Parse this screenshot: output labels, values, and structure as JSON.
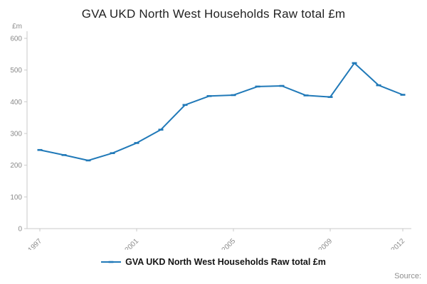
{
  "title": "GVA UKD North West Households Raw total £m",
  "legend": {
    "label": "GVA UKD North West Households Raw total £m"
  },
  "source_label": "Source:",
  "colors": {
    "line": "#2079b8",
    "axis": "#c9c9c9",
    "tick_text": "#8a8a8a"
  },
  "chart_data": {
    "type": "line",
    "title": "GVA UKD North West Households Raw total £m",
    "ylabel": "£m",
    "xlabel": "",
    "grid": false,
    "legend_position": "bottom",
    "ylim": [
      0,
      600
    ],
    "yticks": [
      0,
      100,
      200,
      300,
      400,
      500,
      600
    ],
    "xticks": [
      1997,
      2001,
      2005,
      2009,
      2012
    ],
    "x": [
      1997,
      1998,
      1999,
      2000,
      2001,
      2002,
      2003,
      2004,
      2005,
      2006,
      2007,
      2008,
      2009,
      2010,
      2011,
      2012
    ],
    "series": [
      {
        "name": "GVA UKD North West Households Raw total £m",
        "values": [
          248,
          232,
          215,
          238,
          270,
          312,
          390,
          418,
          421,
          448,
          450,
          420,
          415,
          522,
          452,
          422
        ]
      }
    ]
  }
}
